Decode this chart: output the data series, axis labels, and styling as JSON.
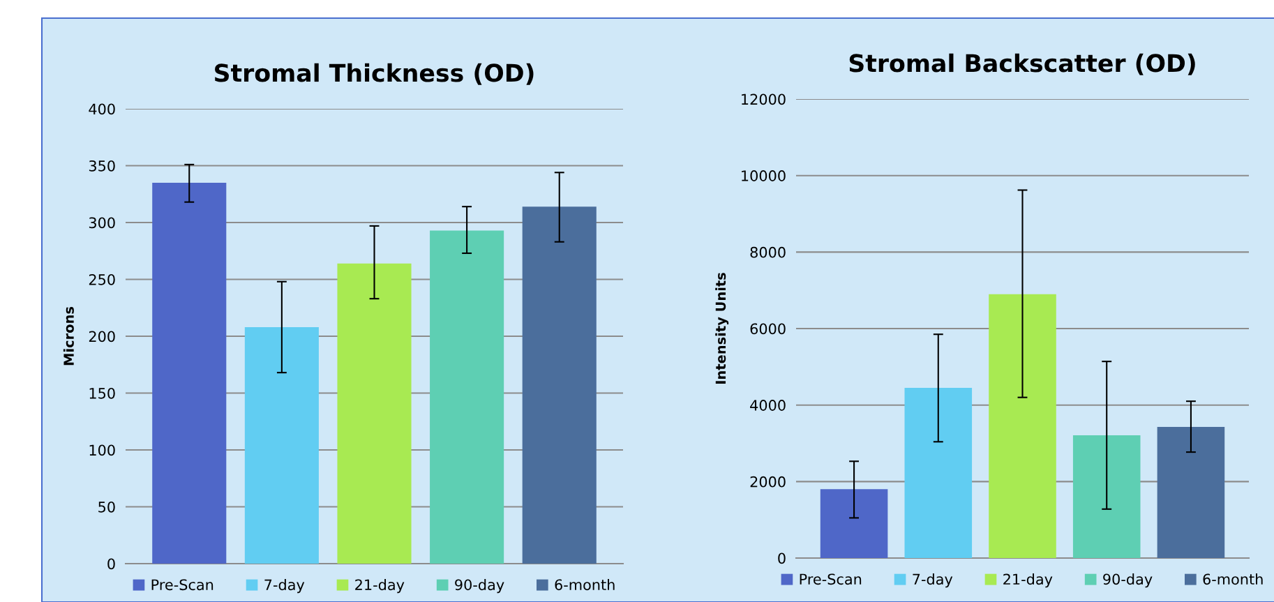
{
  "chart_data": [
    {
      "type": "bar",
      "title": "Stromal Thickness (OD)",
      "ylabel": "Microns",
      "categories": [
        null
      ],
      "ylim": [
        0,
        400
      ],
      "yticks": [
        0,
        50,
        100,
        150,
        200,
        250,
        300,
        350,
        400
      ],
      "grid": "y",
      "legend": "bottom",
      "tick_labels": "y",
      "series": [
        {
          "name": "Pre-Scan",
          "color": "#4f67c8",
          "values": [
            335
          ],
          "errors": [
            [
              318,
              351
            ]
          ]
        },
        {
          "name": "7-day",
          "color": "#61cdf2",
          "values": [
            208
          ],
          "errors": [
            [
              168,
              248
            ]
          ]
        },
        {
          "name": "21-day",
          "color": "#a8ea52",
          "values": [
            264
          ],
          "errors": [
            [
              233,
              297
            ]
          ]
        },
        {
          "name": "90-day",
          "color": "#5ecfb3",
          "values": [
            293
          ],
          "errors": [
            [
              273,
              314
            ]
          ]
        },
        {
          "name": "6-month",
          "color": "#4b6e9c",
          "values": [
            314
          ],
          "errors": [
            [
              283,
              344
            ]
          ]
        }
      ]
    },
    {
      "type": "bar",
      "title": "Stromal Backscatter (OD)",
      "ylabel": "Intensity Units",
      "categories": [
        null
      ],
      "ylim": [
        0,
        12000
      ],
      "yticks": [
        0,
        2000,
        4000,
        6000,
        8000,
        10000,
        12000
      ],
      "grid": "y",
      "legend": "bottom",
      "tick_labels": "y",
      "series": [
        {
          "name": "Pre-Scan",
          "color": "#4f67c8",
          "values": [
            1800
          ],
          "errors": [
            [
              1050,
              2530
            ]
          ]
        },
        {
          "name": "7-day",
          "color": "#61cdf2",
          "values": [
            4450
          ],
          "errors": [
            [
              3040,
              5850
            ]
          ]
        },
        {
          "name": "21-day",
          "color": "#a8ea52",
          "values": [
            6900
          ],
          "errors": [
            [
              4200,
              9620
            ]
          ]
        },
        {
          "name": "90-day",
          "color": "#5ecfb3",
          "values": [
            3210
          ],
          "errors": [
            [
              1280,
              5140
            ]
          ]
        },
        {
          "name": "6-month",
          "color": "#4b6e9c",
          "values": [
            3430
          ],
          "errors": [
            [
              2770,
              4100
            ]
          ]
        }
      ]
    }
  ]
}
